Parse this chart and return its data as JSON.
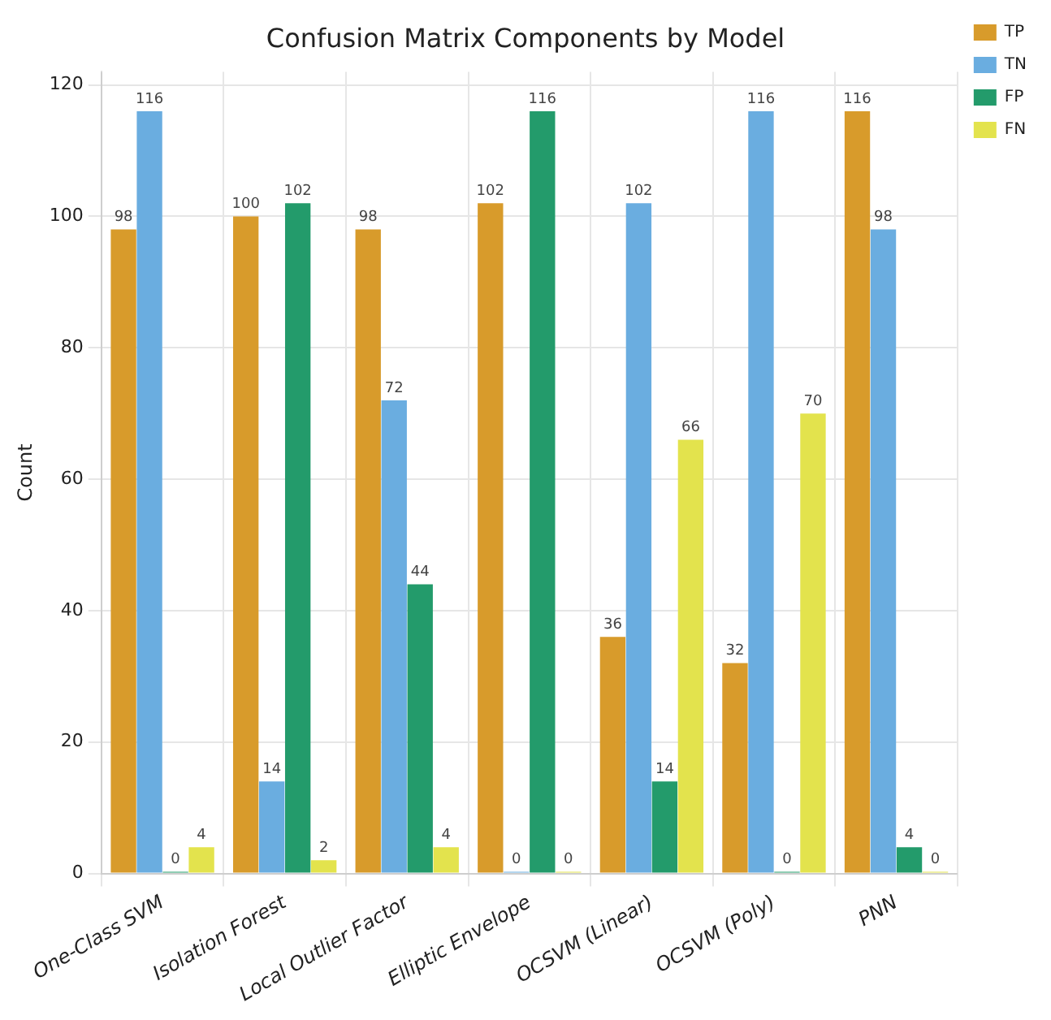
{
  "chart_data": {
    "type": "bar",
    "title": "Confusion Matrix Components by Model",
    "ylabel": "Count",
    "categories": [
      "One-Class SVM",
      "Isolation Forest",
      "Local Outlier Factor",
      "Elliptic Envelope",
      "OCSVM (Linear)",
      "OCSVM (Poly)",
      "PNN"
    ],
    "series": [
      {
        "name": "TP",
        "color": "#d89b2b",
        "values": [
          98,
          100,
          98,
          102,
          36,
          32,
          116
        ]
      },
      {
        "name": "TN",
        "color": "#6aade0",
        "values": [
          116,
          14,
          72,
          0,
          102,
          116,
          98
        ]
      },
      {
        "name": "FP",
        "color": "#239b6b",
        "values": [
          0,
          102,
          44,
          116,
          14,
          0,
          4
        ]
      },
      {
        "name": "FN",
        "color": "#e3e34d",
        "values": [
          4,
          2,
          4,
          0,
          66,
          70,
          0
        ]
      }
    ],
    "ylim": [
      0,
      122
    ],
    "yticks": [
      0,
      20,
      40,
      60,
      80,
      100,
      120
    ],
    "grid": true,
    "legend": "top right",
    "data_labels": true
  }
}
